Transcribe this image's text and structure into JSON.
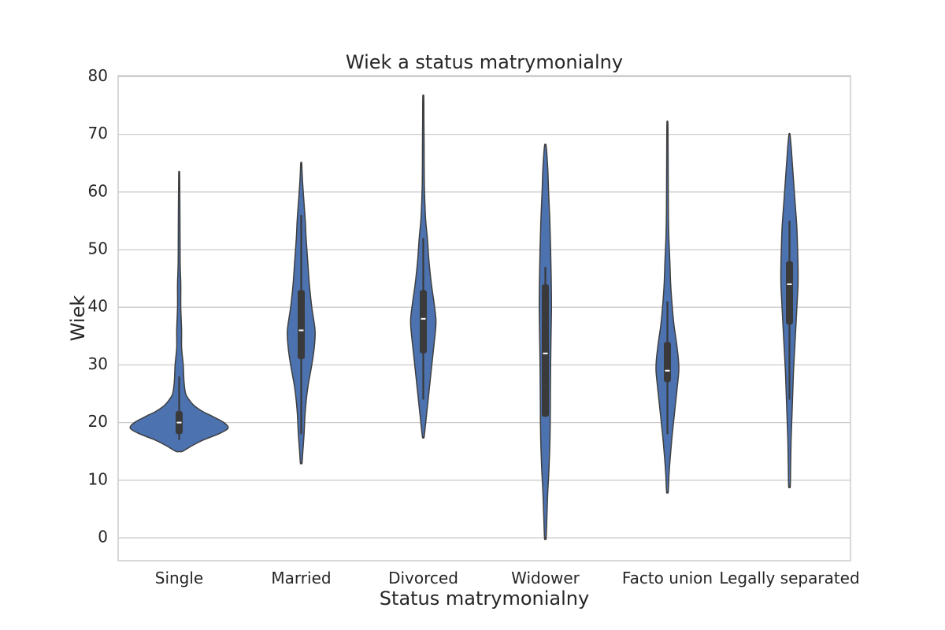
{
  "chart_data": {
    "type": "violin",
    "title": "Wiek a status matrymonialny",
    "xlabel": "Status matrymonialny",
    "ylabel": "Wiek",
    "ylim": [
      -4,
      80
    ],
    "yticks": [
      0,
      10,
      20,
      30,
      40,
      50,
      60,
      70,
      80
    ],
    "grid": true,
    "colors": {
      "violin_fill": "#4c72b0",
      "violin_edge": "#3f3f3f",
      "box": "#3a3a3a",
      "median": "#ffffff",
      "grid": "#cccccc"
    },
    "categories": [
      {
        "label": "Single",
        "min": 15,
        "max": 63,
        "q1": 18,
        "median": 20,
        "q3": 22,
        "whisker_low": 17,
        "whisker_high": 28,
        "profile": [
          [
            15,
            4
          ],
          [
            16,
            16
          ],
          [
            17,
            30
          ],
          [
            18,
            48
          ],
          [
            19,
            60
          ],
          [
            20,
            55
          ],
          [
            21,
            42
          ],
          [
            22,
            28
          ],
          [
            23,
            18
          ],
          [
            24,
            12
          ],
          [
            25,
            8
          ],
          [
            27,
            6
          ],
          [
            30,
            5
          ],
          [
            33,
            3
          ],
          [
            36,
            3
          ],
          [
            40,
            2
          ],
          [
            44,
            2
          ],
          [
            48,
            1.2
          ],
          [
            55,
            1
          ],
          [
            63,
            0.6
          ]
        ]
      },
      {
        "label": "Married",
        "min": 13,
        "max": 65,
        "q1": 31,
        "median": 36,
        "q3": 43,
        "whisker_low": 18,
        "whisker_high": 56,
        "profile": [
          [
            13,
            1
          ],
          [
            15,
            2
          ],
          [
            18,
            3.5
          ],
          [
            22,
            5
          ],
          [
            26,
            8
          ],
          [
            30,
            13
          ],
          [
            33,
            16
          ],
          [
            36,
            17
          ],
          [
            40,
            13
          ],
          [
            44,
            10
          ],
          [
            48,
            8
          ],
          [
            52,
            6
          ],
          [
            55,
            5
          ],
          [
            58,
            3.5
          ],
          [
            61,
            2
          ],
          [
            63,
            1.2
          ],
          [
            65,
            0.6
          ]
        ]
      },
      {
        "label": "Divorced",
        "min": 17.5,
        "max": 76.5,
        "q1": 32,
        "median": 38,
        "q3": 43,
        "whisker_low": 24,
        "whisker_high": 52,
        "profile": [
          [
            17.5,
            1
          ],
          [
            20,
            3
          ],
          [
            24,
            6
          ],
          [
            28,
            9
          ],
          [
            32,
            12
          ],
          [
            36,
            15
          ],
          [
            38,
            15.5
          ],
          [
            41,
            13
          ],
          [
            44,
            10
          ],
          [
            48,
            7
          ],
          [
            52,
            5
          ],
          [
            55,
            3
          ],
          [
            58,
            2
          ],
          [
            62,
            1.2
          ],
          [
            68,
            1
          ],
          [
            72,
            0.8
          ],
          [
            76.5,
            0.6
          ]
        ]
      },
      {
        "label": "Widower",
        "min": 0,
        "max": 68,
        "q1": 21,
        "median": 32,
        "q3": 44,
        "whisker_low": 21,
        "whisker_high": 47,
        "profile": [
          [
            0,
            1
          ],
          [
            4,
            2
          ],
          [
            8,
            3
          ],
          [
            12,
            4.5
          ],
          [
            16,
            5.5
          ],
          [
            20,
            6
          ],
          [
            25,
            6.2
          ],
          [
            30,
            6.5
          ],
          [
            35,
            7
          ],
          [
            40,
            7.5
          ],
          [
            45,
            7.2
          ],
          [
            50,
            6.5
          ],
          [
            55,
            5.5
          ],
          [
            60,
            4
          ],
          [
            64,
            3
          ],
          [
            68,
            1
          ]
        ]
      },
      {
        "label": "Facto union",
        "min": 8,
        "max": 72,
        "q1": 27,
        "median": 29,
        "q3": 34,
        "whisker_low": 18,
        "whisker_high": 41,
        "profile": [
          [
            8,
            1
          ],
          [
            11,
            2
          ],
          [
            14,
            3.5
          ],
          [
            18,
            6
          ],
          [
            22,
            9
          ],
          [
            26,
            12
          ],
          [
            29,
            14
          ],
          [
            31,
            13.5
          ],
          [
            34,
            11
          ],
          [
            37,
            8
          ],
          [
            40,
            6
          ],
          [
            44,
            4
          ],
          [
            48,
            3
          ],
          [
            52,
            1.8
          ],
          [
            56,
            1.2
          ],
          [
            62,
            1
          ],
          [
            68,
            0.8
          ],
          [
            72,
            0.6
          ]
        ]
      },
      {
        "label": "Legally separated",
        "min": 9,
        "max": 70,
        "q1": 37,
        "median": 44,
        "q3": 48,
        "whisker_low": 24,
        "whisker_high": 55,
        "profile": [
          [
            9,
            1
          ],
          [
            13,
            1.5
          ],
          [
            17,
            2
          ],
          [
            21,
            3
          ],
          [
            25,
            4
          ],
          [
            29,
            5
          ],
          [
            33,
            6.5
          ],
          [
            37,
            8
          ],
          [
            41,
            9.5
          ],
          [
            44,
            10.5
          ],
          [
            47,
            10.5
          ],
          [
            50,
            10
          ],
          [
            54,
            9
          ],
          [
            58,
            7
          ],
          [
            62,
            5
          ],
          [
            66,
            3
          ],
          [
            68,
            2
          ],
          [
            70,
            0.6
          ]
        ]
      }
    ]
  }
}
